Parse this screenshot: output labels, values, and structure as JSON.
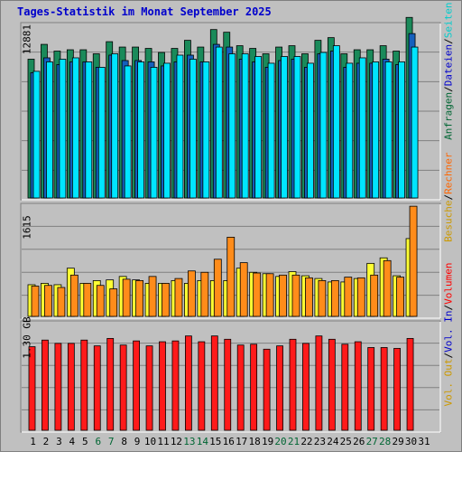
{
  "title": "Tages-Statistik im Monat September 2025",
  "axis_labels": {
    "top": "12881",
    "middle": "1615",
    "bottom": "1.30 GB"
  },
  "legends": {
    "top": [
      {
        "text": "Anfragen",
        "color": "#006633"
      },
      {
        "text": "/",
        "color": "#000000"
      },
      {
        "text": "Dateien",
        "color": "#0000cc"
      },
      {
        "text": "/",
        "color": "#000000"
      },
      {
        "text": "Seiten",
        "color": "#00cccc"
      }
    ],
    "middle": [
      {
        "text": "Besuche",
        "color": "#cc9900"
      },
      {
        "text": "/",
        "color": "#000000"
      },
      {
        "text": "Rechner",
        "color": "#ff6600"
      }
    ],
    "bottom": [
      {
        "text": "Vol. Out",
        "color": "#cc9900"
      },
      {
        "text": "/",
        "color": "#000000"
      },
      {
        "text": "Vol. In",
        "color": "#0000cc"
      },
      {
        "text": "/",
        "color": "#000000"
      },
      {
        "text": "Volumen",
        "color": "#ff0000"
      }
    ]
  },
  "colors": {
    "background": "#c0c0c0",
    "panel": "#c0c0c0",
    "grid": "#808080",
    "anfragen": "#1a8a5a",
    "dateien": "#1560bd",
    "seiten": "#00e5ff",
    "besuche": "#ffff33",
    "rechner": "#ff8c1a",
    "volumen": "#ff1a1a",
    "weekend_label": "#006633",
    "weekday_label": "#000000"
  },
  "chart_data": [
    {
      "type": "bar",
      "panel": "top",
      "categories": [
        "1",
        "2",
        "3",
        "4",
        "5",
        "6",
        "7",
        "8",
        "9",
        "10",
        "11",
        "12",
        "13",
        "14",
        "15",
        "16",
        "17",
        "18",
        "19",
        "20",
        "21",
        "22",
        "23",
        "24",
        "25",
        "26",
        "27",
        "28",
        "29",
        "30"
      ],
      "ylim": [
        0,
        12881
      ],
      "series": [
        {
          "name": "Anfragen",
          "values": [
            10300,
            11400,
            10900,
            11000,
            11000,
            10700,
            11600,
            11200,
            11200,
            11100,
            10800,
            11100,
            11700,
            11200,
            12500,
            12300,
            11300,
            11100,
            10700,
            11200,
            11300,
            10700,
            11700,
            11900,
            10700,
            11000,
            11000,
            11300,
            10900,
            13400
          ]
        },
        {
          "name": "Dateien",
          "values": [
            9300,
            10400,
            9900,
            10100,
            10100,
            9700,
            10600,
            10200,
            10200,
            10100,
            9800,
            10100,
            10600,
            10100,
            11400,
            11200,
            10300,
            10100,
            9700,
            10200,
            10300,
            9700,
            10700,
            10900,
            9700,
            10000,
            10000,
            10300,
            9900,
            12200
          ]
        },
        {
          "name": "Seiten",
          "values": [
            9400,
            10100,
            10300,
            10400,
            10100,
            9700,
            10700,
            9800,
            10100,
            9700,
            10000,
            10600,
            10300,
            10100,
            11200,
            10700,
            10700,
            10500,
            10000,
            10500,
            10500,
            10000,
            10800,
            11300,
            10000,
            10400,
            10100,
            10100,
            10100,
            11200
          ]
        }
      ]
    },
    {
      "type": "bar",
      "panel": "middle",
      "categories": [
        "1",
        "2",
        "3",
        "4",
        "5",
        "6",
        "7",
        "8",
        "9",
        "10",
        "11",
        "12",
        "13",
        "14",
        "15",
        "16",
        "17",
        "18",
        "19",
        "20",
        "21",
        "22",
        "23",
        "24",
        "25",
        "26",
        "27",
        "28",
        "29",
        "30"
      ],
      "ylim": [
        0,
        1615
      ],
      "series": [
        {
          "name": "Besuche",
          "values": [
            460,
            480,
            460,
            700,
            480,
            520,
            530,
            580,
            530,
            480,
            480,
            520,
            480,
            520,
            520,
            520,
            700,
            640,
            620,
            580,
            650,
            590,
            550,
            500,
            500,
            550,
            770,
            850,
            590,
            1130
          ]
        },
        {
          "name": "Rechner",
          "values": [
            440,
            450,
            420,
            600,
            480,
            450,
            400,
            540,
            520,
            580,
            480,
            550,
            660,
            640,
            830,
            1150,
            780,
            630,
            620,
            600,
            600,
            560,
            520,
            520,
            570,
            560,
            600,
            810,
            570,
            1600
          ]
        }
      ]
    },
    {
      "type": "bar",
      "panel": "bottom",
      "categories": [
        "1",
        "2",
        "3",
        "4",
        "5",
        "6",
        "7",
        "8",
        "9",
        "10",
        "11",
        "12",
        "13",
        "14",
        "15",
        "16",
        "17",
        "18",
        "19",
        "20",
        "21",
        "22",
        "23",
        "24",
        "25",
        "26",
        "27",
        "28",
        "29",
        "30"
      ],
      "ylim": [
        0,
        1.3
      ],
      "series": [
        {
          "name": "Volumen",
          "values": [
            1.01,
            1.09,
            1.05,
            1.05,
            1.09,
            1.02,
            1.11,
            1.03,
            1.08,
            1.02,
            1.07,
            1.08,
            1.14,
            1.07,
            1.14,
            1.1,
            1.03,
            1.04,
            0.98,
            1.02,
            1.1,
            1.05,
            1.14,
            1.1,
            1.04,
            1.07,
            1.0,
            1.0,
            0.99,
            1.11
          ]
        }
      ]
    }
  ],
  "x_axis": {
    "labels": [
      "1",
      "2",
      "3",
      "4",
      "5",
      "6",
      "7",
      "8",
      "9",
      "10",
      "11",
      "12",
      "13",
      "14",
      "15",
      "16",
      "17",
      "18",
      "19",
      "20",
      "21",
      "22",
      "23",
      "24",
      "25",
      "26",
      "27",
      "28",
      "29",
      "30",
      "31"
    ],
    "weekend": [
      "6",
      "7",
      "13",
      "14",
      "20",
      "21",
      "27",
      "28"
    ]
  }
}
